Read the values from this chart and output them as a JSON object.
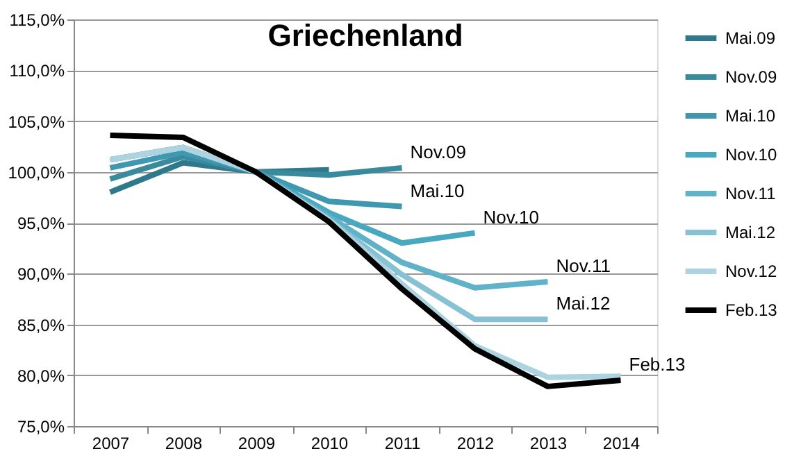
{
  "chart_data": {
    "type": "line",
    "title": "Griechenland",
    "categories": [
      "2007",
      "2008",
      "2009",
      "2010",
      "2011",
      "2012",
      "2013",
      "2014"
    ],
    "ylim": [
      75,
      115
    ],
    "yticks": [
      {
        "value": 75,
        "label": "75,0%"
      },
      {
        "value": 80,
        "label": "80,0%"
      },
      {
        "value": 85,
        "label": "85,0%"
      },
      {
        "value": 90,
        "label": "90,0%"
      },
      {
        "value": 95,
        "label": "95,0%"
      },
      {
        "value": 100,
        "label": "100,0%"
      },
      {
        "value": 105,
        "label": "105,0%"
      },
      {
        "value": 110,
        "label": "110,0%"
      },
      {
        "value": 115,
        "label": "115,0%"
      }
    ],
    "grid": "y",
    "legend": "right",
    "marker": "none",
    "line_style": "solid",
    "series": [
      {
        "name": "Mai.09",
        "color": "#2e7a8c",
        "values": [
          98.0,
          100.9,
          100.0,
          100.2,
          null,
          null,
          null,
          null
        ]
      },
      {
        "name": "Nov.09",
        "color": "#3a8a9e",
        "values": [
          99.3,
          101.5,
          100.0,
          99.7,
          100.4,
          null,
          null,
          null
        ]
      },
      {
        "name": "Mai.10",
        "color": "#3f98b0",
        "values": [
          100.4,
          101.9,
          100.0,
          97.1,
          96.6,
          null,
          null,
          null
        ]
      },
      {
        "name": "Nov.10",
        "color": "#48a8c0",
        "values": [
          101.2,
          102.4,
          100.0,
          96.0,
          93.0,
          94.0,
          null,
          null
        ]
      },
      {
        "name": "Nov.11",
        "color": "#5fb2c8",
        "values": [
          101.2,
          102.4,
          100.0,
          95.6,
          91.1,
          88.6,
          89.2,
          null
        ]
      },
      {
        "name": "Mai.12",
        "color": "#86c2d4",
        "values": [
          101.2,
          102.4,
          100.0,
          95.3,
          89.9,
          85.5,
          85.5,
          null
        ]
      },
      {
        "name": "Nov.12",
        "color": "#aed3e0",
        "values": [
          101.2,
          102.4,
          100.0,
          95.3,
          89.0,
          82.9,
          79.8,
          79.9
        ]
      },
      {
        "name": "Feb.13",
        "color": "#000000",
        "values": [
          103.6,
          103.4,
          100.0,
          95.1,
          88.5,
          82.6,
          78.9,
          79.5
        ]
      }
    ],
    "annotations": [
      {
        "text": "Nov.09",
        "x": "2011",
        "y": 100.4
      },
      {
        "text": "Mai.10",
        "x": "2011",
        "y": 96.6
      },
      {
        "text": "Nov.10",
        "x": "2012",
        "y": 94.0
      },
      {
        "text": "Nov.11",
        "x": "2013",
        "y": 89.2
      },
      {
        "text": "Mai.12",
        "x": "2013",
        "y": 85.5
      },
      {
        "text": "Feb.13",
        "x": "2014",
        "y": 79.5
      }
    ]
  }
}
